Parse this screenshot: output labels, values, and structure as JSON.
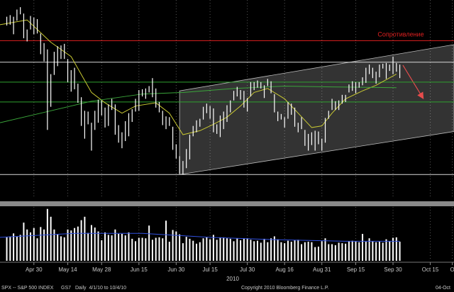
{
  "chart_data": {
    "type": "ohlc",
    "xlim": [
      -2,
      132
    ],
    "ylim": [
      980,
      1229
    ],
    "xticks": [
      {
        "value": 8,
        "label": "Apr 30"
      },
      {
        "value": 18,
        "label": "May 14"
      },
      {
        "value": 28,
        "label": "May 28"
      },
      {
        "value": 39,
        "label": "Jun 15"
      },
      {
        "value": 50,
        "label": "Jun 30"
      },
      {
        "value": 60,
        "label": "Jul 15"
      },
      {
        "value": 71,
        "label": "Jul 30"
      },
      {
        "value": 82,
        "label": "Aug 16"
      },
      {
        "value": 93,
        "label": "Aug 31"
      },
      {
        "value": 103,
        "label": "Sep 15"
      },
      {
        "value": 114,
        "label": "Sep 30"
      },
      {
        "value": 125,
        "label": "Oct 15"
      },
      {
        "value": 131.5,
        "label": "O"
      }
    ],
    "year_label": "2010",
    "bar_color": "#ffffff",
    "high": [
      1208,
      1210,
      1208,
      1217,
      1220,
      1212,
      1192,
      1209,
      1207,
      1205,
      1187,
      1175,
      1167,
      1136,
      1164,
      1171,
      1172,
      1174,
      1155,
      1141,
      1144,
      1124,
      1107,
      1090,
      1089,
      1075,
      1090,
      1104,
      1103,
      1094,
      1098,
      1105,
      1098,
      1072,
      1063,
      1077,
      1087,
      1092,
      1105,
      1116,
      1117,
      1118,
      1121,
      1131,
      1118,
      1101,
      1090,
      1083,
      1082,
      1070,
      1048,
      1033,
      1027,
      1042,
      1060,
      1071,
      1078,
      1080,
      1095,
      1099,
      1096,
      1093,
      1073,
      1084,
      1089,
      1097,
      1103,
      1115,
      1120,
      1116,
      1115,
      1106,
      1126,
      1126,
      1128,
      1126,
      1122,
      1130,
      1127,
      1111,
      1089,
      1086,
      1082,
      1101,
      1099,
      1094,
      1075,
      1082,
      1066,
      1061,
      1063,
      1065,
      1064,
      1055,
      1081,
      1090,
      1105,
      1102,
      1103,
      1110,
      1110,
      1123,
      1127,
      1126,
      1126,
      1132,
      1144,
      1148,
      1144,
      1139,
      1148,
      1149,
      1150,
      1148,
      1158,
      1150,
      1148
    ],
    "low": [
      1197,
      1198,
      1186,
      1203,
      1211,
      1181,
      1177,
      1192,
      1186,
      1187,
      1161,
      1152,
      1066,
      1095,
      1135,
      1146,
      1155,
      1155,
      1126,
      1114,
      1117,
      1100,
      1071,
      1055,
      1073,
      1040,
      1066,
      1075,
      1084,
      1069,
      1071,
      1091,
      1060,
      1050,
      1043,
      1052,
      1058,
      1076,
      1089,
      1090,
      1108,
      1105,
      1113,
      1107,
      1094,
      1088,
      1072,
      1067,
      1071,
      1041,
      1030,
      1011,
      1010,
      1018,
      1029,
      1058,
      1063,
      1070,
      1079,
      1087,
      1080,
      1063,
      1061,
      1057,
      1067,
      1076,
      1088,
      1103,
      1108,
      1104,
      1094,
      1089,
      1108,
      1116,
      1119,
      1118,
      1106,
      1121,
      1112,
      1088,
      1077,
      1079,
      1069,
      1080,
      1085,
      1070,
      1063,
      1067,
      1046,
      1040,
      1047,
      1040,
      1048,
      1040,
      1050,
      1080,
      1091,
      1091,
      1091,
      1099,
      1101,
      1113,
      1115,
      1112,
      1119,
      1122,
      1125,
      1136,
      1131,
      1124,
      1132,
      1143,
      1130,
      1140,
      1136,
      1139,
      1131
    ],
    "ma_lines": [
      {
        "color": "#c8c832",
        "x": [
          -2,
          6,
          13,
          19,
          25,
          29,
          34,
          38,
          44,
          48,
          52,
          57,
          61,
          65,
          69,
          73,
          77,
          82,
          86,
          90,
          93,
          96,
          100,
          105,
          109,
          115
        ],
        "values": [
          1198,
          1204,
          1176,
          1158,
          1113,
          1100,
          1087,
          1096,
          1100,
          1087,
          1060,
          1065,
          1073,
          1082,
          1096,
          1113,
          1118,
          1105,
          1087,
          1069,
          1071,
          1087,
          1105,
          1115,
          1122,
          1136
        ]
      },
      {
        "color": "#3aa53a",
        "x": [
          -2,
          10,
          25,
          40,
          52,
          67,
          82,
          96,
          115
        ],
        "values": [
          1075,
          1087,
          1102,
          1111,
          1113,
          1118,
          1121,
          1120,
          1119
        ]
      }
    ],
    "levels": [
      {
        "value": 1178,
        "color": "#e02020",
        "label": "Сопротивление"
      },
      {
        "value": 1151,
        "color": "#d8d8d8"
      },
      {
        "value": 1126,
        "color": "#2fa02f"
      },
      {
        "value": 1101,
        "color": "#2fa02f"
      },
      {
        "value": 1010,
        "color": "#d8d8d8"
      }
    ],
    "channel": {
      "x": [
        51,
        132
      ],
      "upper": [
        1115,
        1173
      ],
      "lower": [
        1010,
        1064
      ]
    },
    "volume": {
      "ylim": [
        0,
        11
      ],
      "color": "#ffffff",
      "values": [
        4.9,
        5.0,
        5.6,
        5.0,
        5.3,
        7.8,
        6.4,
        5.8,
        6.7,
        4.6,
        6.9,
        6.4,
        10.6,
        9.0,
        6.4,
        5.4,
        5.0,
        4.8,
        6.4,
        6.2,
        6.7,
        7.0,
        8.3,
        9.0,
        5.7,
        7.3,
        6.8,
        6.0,
        4.2,
        5.8,
        5.3,
        5.2,
        6.4,
        5.5,
        5.5,
        5.2,
        5.8,
        4.5,
        4.0,
        4.7,
        4.7,
        4.6,
        7.2,
        4.3,
        4.7,
        4.8,
        4.6,
        8.2,
        3.9,
        6.3,
        6.0,
        5.4,
        3.6,
        4.9,
        4.5,
        4.1,
        3.5,
        3.8,
        4.6,
        4.8,
        4.4,
        5.3,
        4.3,
        4.8,
        4.8,
        4.6,
        4.5,
        4.0,
        4.6,
        4.2,
        4.6,
        4.6,
        4.3,
        4.0,
        4.1,
        3.7,
        4.5,
        3.8,
        4.6,
        5.0,
        4.4,
        3.8,
        3.6,
        4.1,
        3.9,
        4.2,
        4.3,
        3.4,
        3.8,
        3.9,
        3.8,
        2.8,
        2.9,
        4.0,
        4.6,
        3.4,
        3.4,
        3.2,
        3.7,
        3.6,
        3.5,
        4.0,
        4.1,
        4.0,
        3.8,
        5.5,
        3.9,
        4.6,
        4.0,
        3.8,
        3.9,
        3.7,
        4.4,
        4.0,
        4.7,
        4.8,
        3.9
      ],
      "ma": {
        "color": "#3050e0",
        "x": [
          -2,
          20,
          40,
          60,
          80,
          100,
          116
        ],
        "values": [
          4.8,
          5.6,
          5.6,
          4.8,
          4.3,
          4.0,
          4.0
        ]
      }
    }
  },
  "footer": {
    "ticker": "SPX -- S&P 500 INDEX",
    "code": "GS7",
    "range": "Daily  4/1/10 to 10/4/10",
    "copyright": "Copyright 2010 Bloomberg Finance L.P.",
    "date": "04-Oct"
  }
}
